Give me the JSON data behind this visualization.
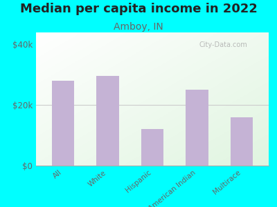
{
  "title": "Median per capita income in 2022",
  "subtitle": "Amboy, IN",
  "categories": [
    "All",
    "White",
    "Hispanic",
    "American Indian",
    "Multirace"
  ],
  "values": [
    28000,
    29500,
    12000,
    25000,
    16000
  ],
  "bar_color": "#c5b3d5",
  "background_color": "#00FFFF",
  "title_fontsize": 13,
  "title_color": "#222222",
  "subtitle_fontsize": 10,
  "subtitle_color": "#666666",
  "ylabel_ticks": [
    "$0",
    "$20k",
    "$40k"
  ],
  "ytick_vals": [
    0,
    20000,
    40000
  ],
  "ylim": [
    0,
    44000
  ],
  "grid_color": "#cccccc",
  "watermark": "City-Data.com",
  "tick_label_color": "#666666",
  "spine_color": "#aaaaaa"
}
